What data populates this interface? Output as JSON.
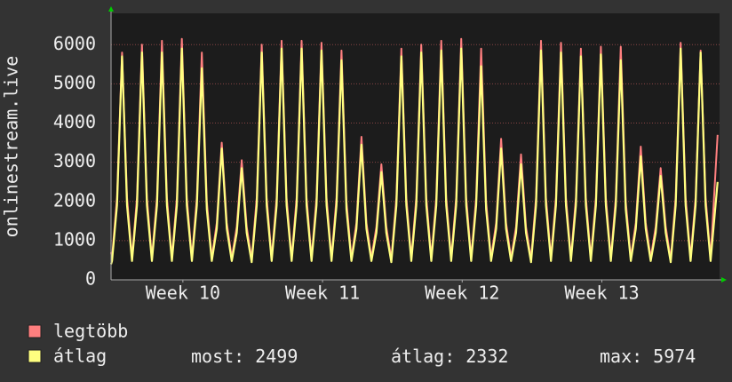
{
  "chart_data": {
    "type": "line",
    "ylabel": "onlinestream.live",
    "x": [
      0,
      0.05,
      0.3,
      0.55,
      0.8,
      1.05,
      1.3,
      1.55,
      1.8,
      2.05,
      2.3,
      2.55,
      2.8,
      3.05,
      3.3,
      3.55,
      3.8,
      4.05,
      4.3,
      4.55,
      4.8,
      5.05,
      5.3,
      5.55,
      5.8,
      6.05,
      6.3,
      6.55,
      6.8,
      7.05,
      7.3,
      7.55,
      7.8,
      8.05,
      8.3,
      8.55,
      8.8,
      9.05,
      9.3,
      9.55,
      9.8,
      10.05,
      10.3,
      10.55,
      10.8,
      11.05,
      11.3,
      11.55,
      11.8,
      12.05,
      12.3,
      12.55,
      12.8,
      13.05,
      13.3,
      13.55,
      13.8,
      14.05,
      14.3,
      14.55,
      14.8,
      15.05,
      15.3,
      15.55,
      15.8,
      16.05,
      16.3,
      16.55,
      16.8,
      17.05,
      17.3,
      17.55,
      17.8,
      18.05,
      18.3,
      18.55,
      18.8,
      19.05,
      19.3,
      19.55,
      19.8,
      20.05,
      20.3,
      20.55,
      20.8,
      21.05,
      21.3,
      21.55,
      21.8,
      22.05,
      22.3,
      22.55,
      22.8,
      23.05,
      23.3,
      23.55,
      23.8,
      24.05,
      24.3,
      24.55,
      24.8,
      25.05,
      25.3,
      25.55,
      25.8,
      26.05,
      26.3,
      26.55,
      26.8,
      27.05,
      27.3,
      27.55,
      27.8,
      28.05,
      28.3,
      28.55,
      28.8,
      29.05,
      29.3,
      29.55,
      29.8,
      30.05,
      30.4
    ],
    "series": [
      {
        "name": "legtöbb",
        "color": "#ff7f7f",
        "values": [
          700,
          560,
          2100,
          5800,
          2100,
          560,
          2100,
          6000,
          2100,
          560,
          2100,
          6100,
          2100,
          560,
          2100,
          6150,
          2100,
          560,
          2100,
          5800,
          2000,
          560,
          1450,
          3500,
          1450,
          560,
          1350,
          3050,
          1350,
          530,
          2100,
          6000,
          2100,
          560,
          2100,
          6100,
          2100,
          560,
          2100,
          6100,
          2100,
          560,
          2100,
          6050,
          2100,
          560,
          2100,
          5850,
          2000,
          560,
          1450,
          3650,
          1450,
          560,
          1350,
          2950,
          1350,
          530,
          2100,
          5900,
          2100,
          560,
          2100,
          6000,
          2100,
          560,
          2100,
          6100,
          2100,
          560,
          2100,
          6150,
          2100,
          560,
          2100,
          5900,
          2000,
          560,
          1450,
          3600,
          1450,
          560,
          1350,
          3200,
          1350,
          530,
          2100,
          6100,
          2100,
          560,
          2100,
          6050,
          2100,
          560,
          2100,
          5900,
          2100,
          560,
          2100,
          5950,
          2100,
          560,
          2100,
          5950,
          2000,
          560,
          1450,
          3400,
          1450,
          560,
          1350,
          2850,
          1350,
          530,
          2100,
          6050,
          2100,
          560,
          2100,
          5850,
          2100,
          560,
          3700
        ]
      },
      {
        "name": "átlag",
        "color": "#ffff80",
        "values": [
          400,
          480,
          1900,
          5700,
          1900,
          480,
          1900,
          5800,
          1900,
          480,
          1900,
          5800,
          1900,
          480,
          1900,
          5900,
          1900,
          480,
          1900,
          5400,
          1800,
          480,
          1300,
          3350,
          1300,
          480,
          1200,
          2850,
          1200,
          450,
          1900,
          5800,
          1900,
          480,
          1900,
          5900,
          1900,
          480,
          1900,
          5900,
          1900,
          480,
          1900,
          5850,
          1900,
          480,
          1900,
          5600,
          1800,
          480,
          1300,
          3450,
          1300,
          480,
          1200,
          2750,
          1200,
          450,
          1900,
          5700,
          1900,
          480,
          1900,
          5800,
          1900,
          480,
          1900,
          5850,
          1900,
          480,
          1900,
          5900,
          1900,
          480,
          1900,
          5450,
          1800,
          480,
          1300,
          3350,
          1300,
          480,
          1200,
          2950,
          1200,
          450,
          1900,
          5850,
          1900,
          480,
          1900,
          5800,
          1900,
          480,
          1900,
          5700,
          1900,
          480,
          1900,
          5750,
          1900,
          480,
          1900,
          5600,
          1800,
          480,
          1300,
          3150,
          1300,
          480,
          1200,
          2650,
          1200,
          450,
          1900,
          5900,
          1900,
          480,
          1900,
          5800,
          1900,
          480,
          2499
        ]
      }
    ],
    "xlim": [
      0,
      30.5
    ],
    "xticks": [
      {
        "value": 3.6,
        "label": "Week 10"
      },
      {
        "value": 10.6,
        "label": "Week 11"
      },
      {
        "value": 17.6,
        "label": "Week 12"
      },
      {
        "value": 24.6,
        "label": "Week 13"
      }
    ],
    "ylim": [
      0,
      6800
    ],
    "yticks": [
      0,
      1000,
      2000,
      3000,
      4000,
      5000,
      6000
    ],
    "grid": true,
    "stats": [
      {
        "label": "most:",
        "value": 2499
      },
      {
        "label": "átlag:",
        "value": 2332
      },
      {
        "label": "max:",
        "value": 5974
      }
    ]
  }
}
